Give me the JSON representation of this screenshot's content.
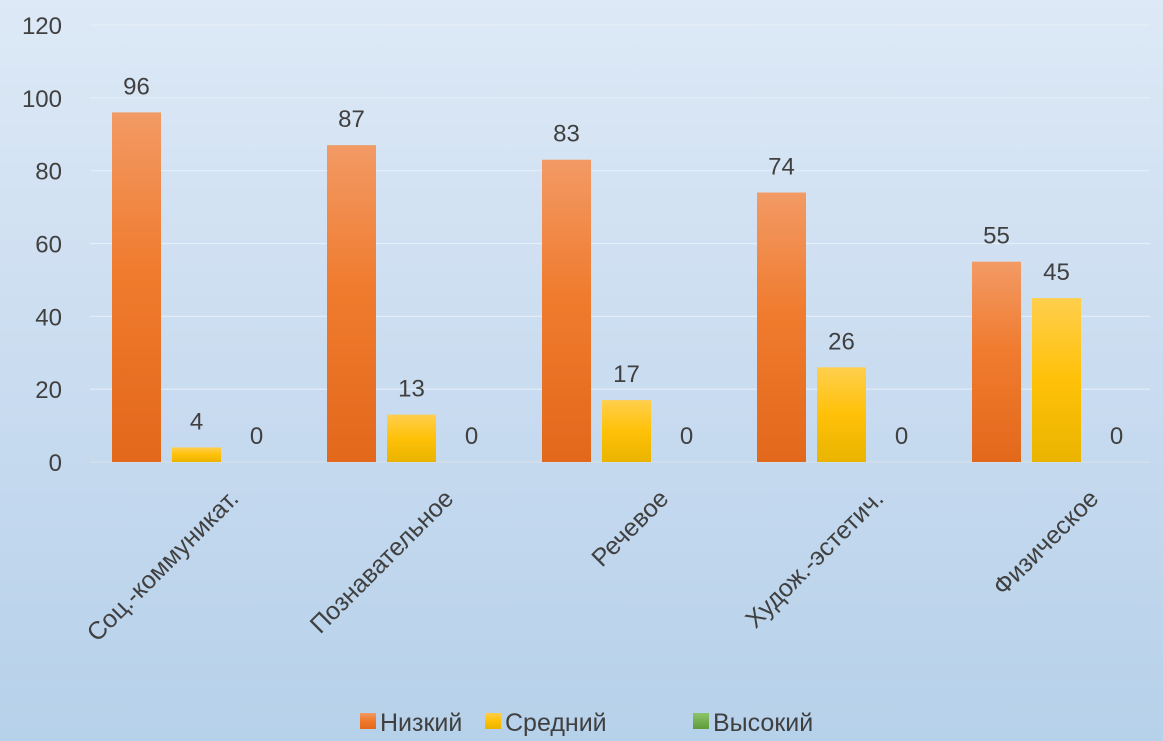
{
  "chart_data": {
    "type": "bar",
    "categories": [
      "Соц.-коммуникат.",
      "Познавательное",
      "Речевое",
      "Худож.-эстетич.",
      "Физическое"
    ],
    "series": [
      {
        "name": "Низкий",
        "color": "#ED7D31",
        "values": [
          96,
          87,
          83,
          74,
          55
        ]
      },
      {
        "name": "Средний",
        "color": "#FFC000",
        "values": [
          4,
          13,
          17,
          26,
          45
        ]
      },
      {
        "name": "Высокий",
        "color": "#70AD47",
        "values": [
          0,
          0,
          0,
          0,
          0
        ]
      }
    ],
    "ylim": [
      0,
      120
    ],
    "yticks": [
      0,
      20,
      40,
      60,
      80,
      100,
      120
    ],
    "grid": true,
    "legend_position": "bottom",
    "data_labels": true
  }
}
